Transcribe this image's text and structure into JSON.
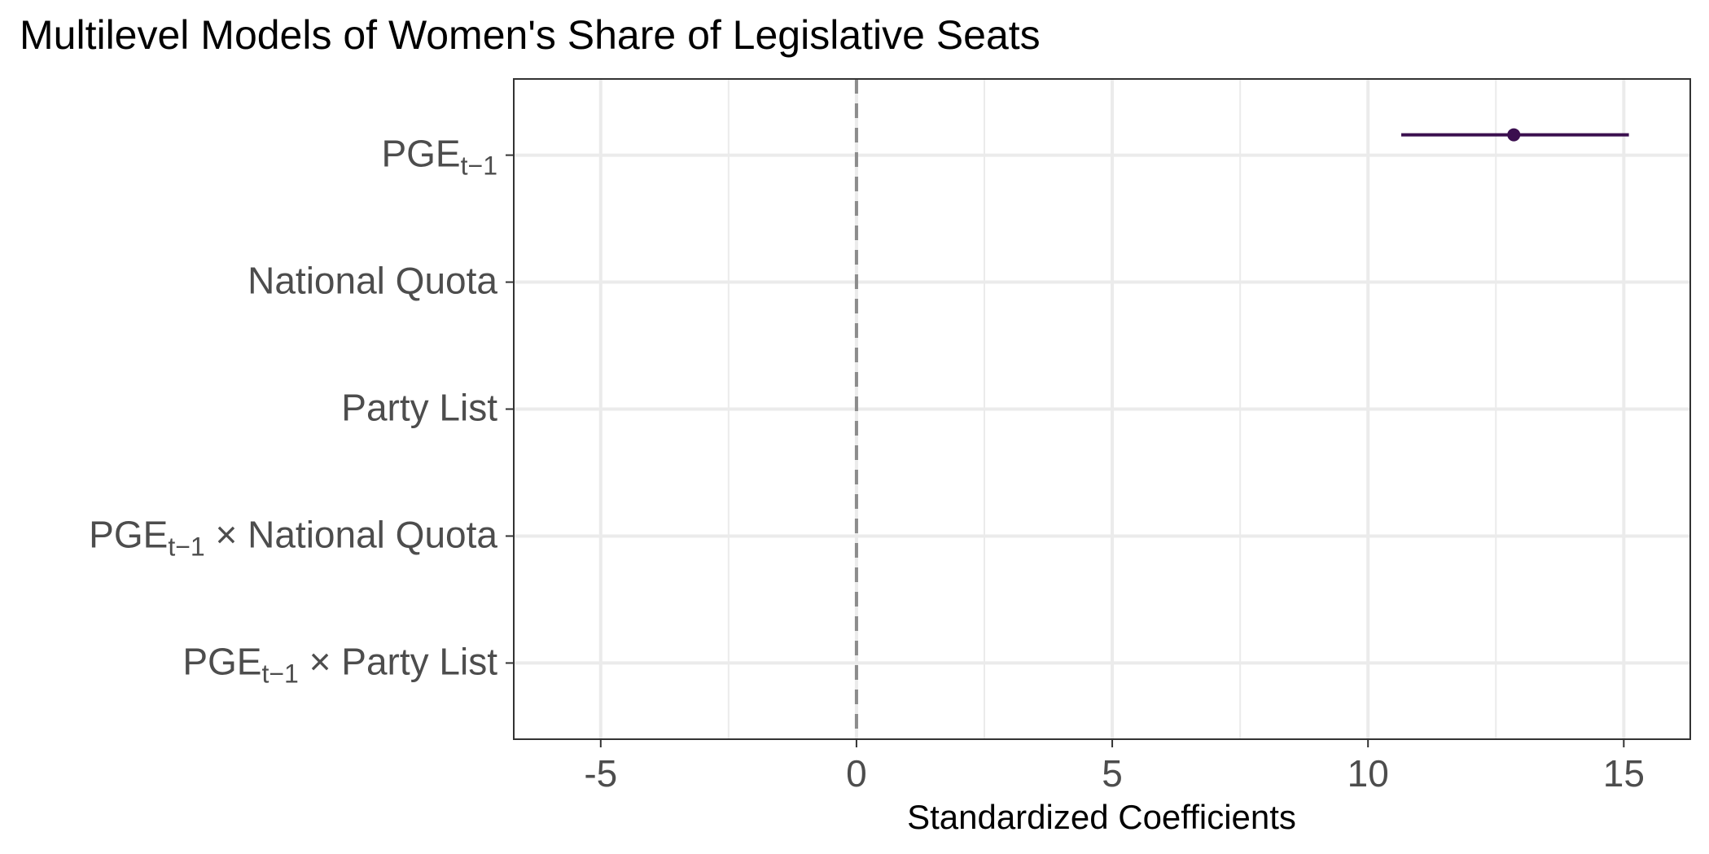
{
  "chart_data": {
    "type": "scatter",
    "title": "Multilevel Models of Women's Share of Legislative Seats",
    "xlabel": "Standardized Coefficients",
    "ylabel": "",
    "xlim": [
      -6.7,
      16.3
    ],
    "x_ticks": [
      {
        "value": -5,
        "label": "-5"
      },
      {
        "value": 0,
        "label": "0"
      },
      {
        "value": 5,
        "label": "5"
      },
      {
        "value": 10,
        "label": "10"
      },
      {
        "value": 15,
        "label": "15"
      }
    ],
    "x_minor_gridlines": [
      -2.5,
      2.5,
      7.5,
      12.5
    ],
    "reference_line": {
      "x": 0,
      "style": "dashed",
      "color": "#8c8c8c"
    },
    "grid": true,
    "categories": [
      {
        "main": "PGE",
        "sub": "t−1",
        "rest": ""
      },
      {
        "main": "National Quota",
        "sub": "",
        "rest": ""
      },
      {
        "main": "Party List",
        "sub": "",
        "rest": ""
      },
      {
        "main": "PGE",
        "sub": "t−1",
        "rest": " × National Quota"
      },
      {
        "main": "PGE",
        "sub": "t−1",
        "rest": " × Party List"
      }
    ],
    "series": [
      {
        "color": "#3b0f4f",
        "points": [
          {
            "category_index": 0,
            "estimate": 12.85,
            "ci_low": 10.65,
            "ci_high": 15.1
          }
        ]
      }
    ]
  }
}
